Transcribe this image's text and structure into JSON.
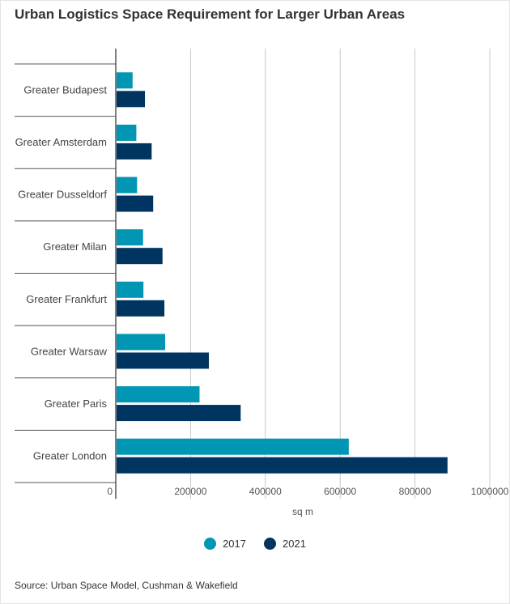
{
  "chart_data": {
    "type": "bar",
    "orientation": "horizontal",
    "title": "Urban Logistics Space Requirement for Larger Urban Areas",
    "categories": [
      "Greater Budapest",
      "Greater Amsterdam",
      "Greater Dusseldorf",
      "Greater Milan",
      "Greater Frankfurt",
      "Greater Warsaw",
      "Greater Paris",
      "Greater London"
    ],
    "series": [
      {
        "name": "2017",
        "color": "#0096b4",
        "values": [
          45000,
          55000,
          57000,
          73000,
          74000,
          132000,
          224000,
          623000
        ]
      },
      {
        "name": "2021",
        "color": "#003561",
        "values": [
          78000,
          96000,
          100000,
          125000,
          130000,
          249000,
          334000,
          887000
        ]
      }
    ],
    "xlabel": "sq m",
    "ylabel": "",
    "xlim": [
      0,
      1000000
    ],
    "xticks": [
      0,
      200000,
      400000,
      600000,
      800000,
      1000000
    ],
    "xtick_labels": [
      "0",
      "200000",
      "400000",
      "600000",
      "800000",
      "1000000"
    ],
    "grid": true,
    "legend_position": "bottom"
  },
  "source": "Source: Urban Space Model, Cushman & Wakefield"
}
